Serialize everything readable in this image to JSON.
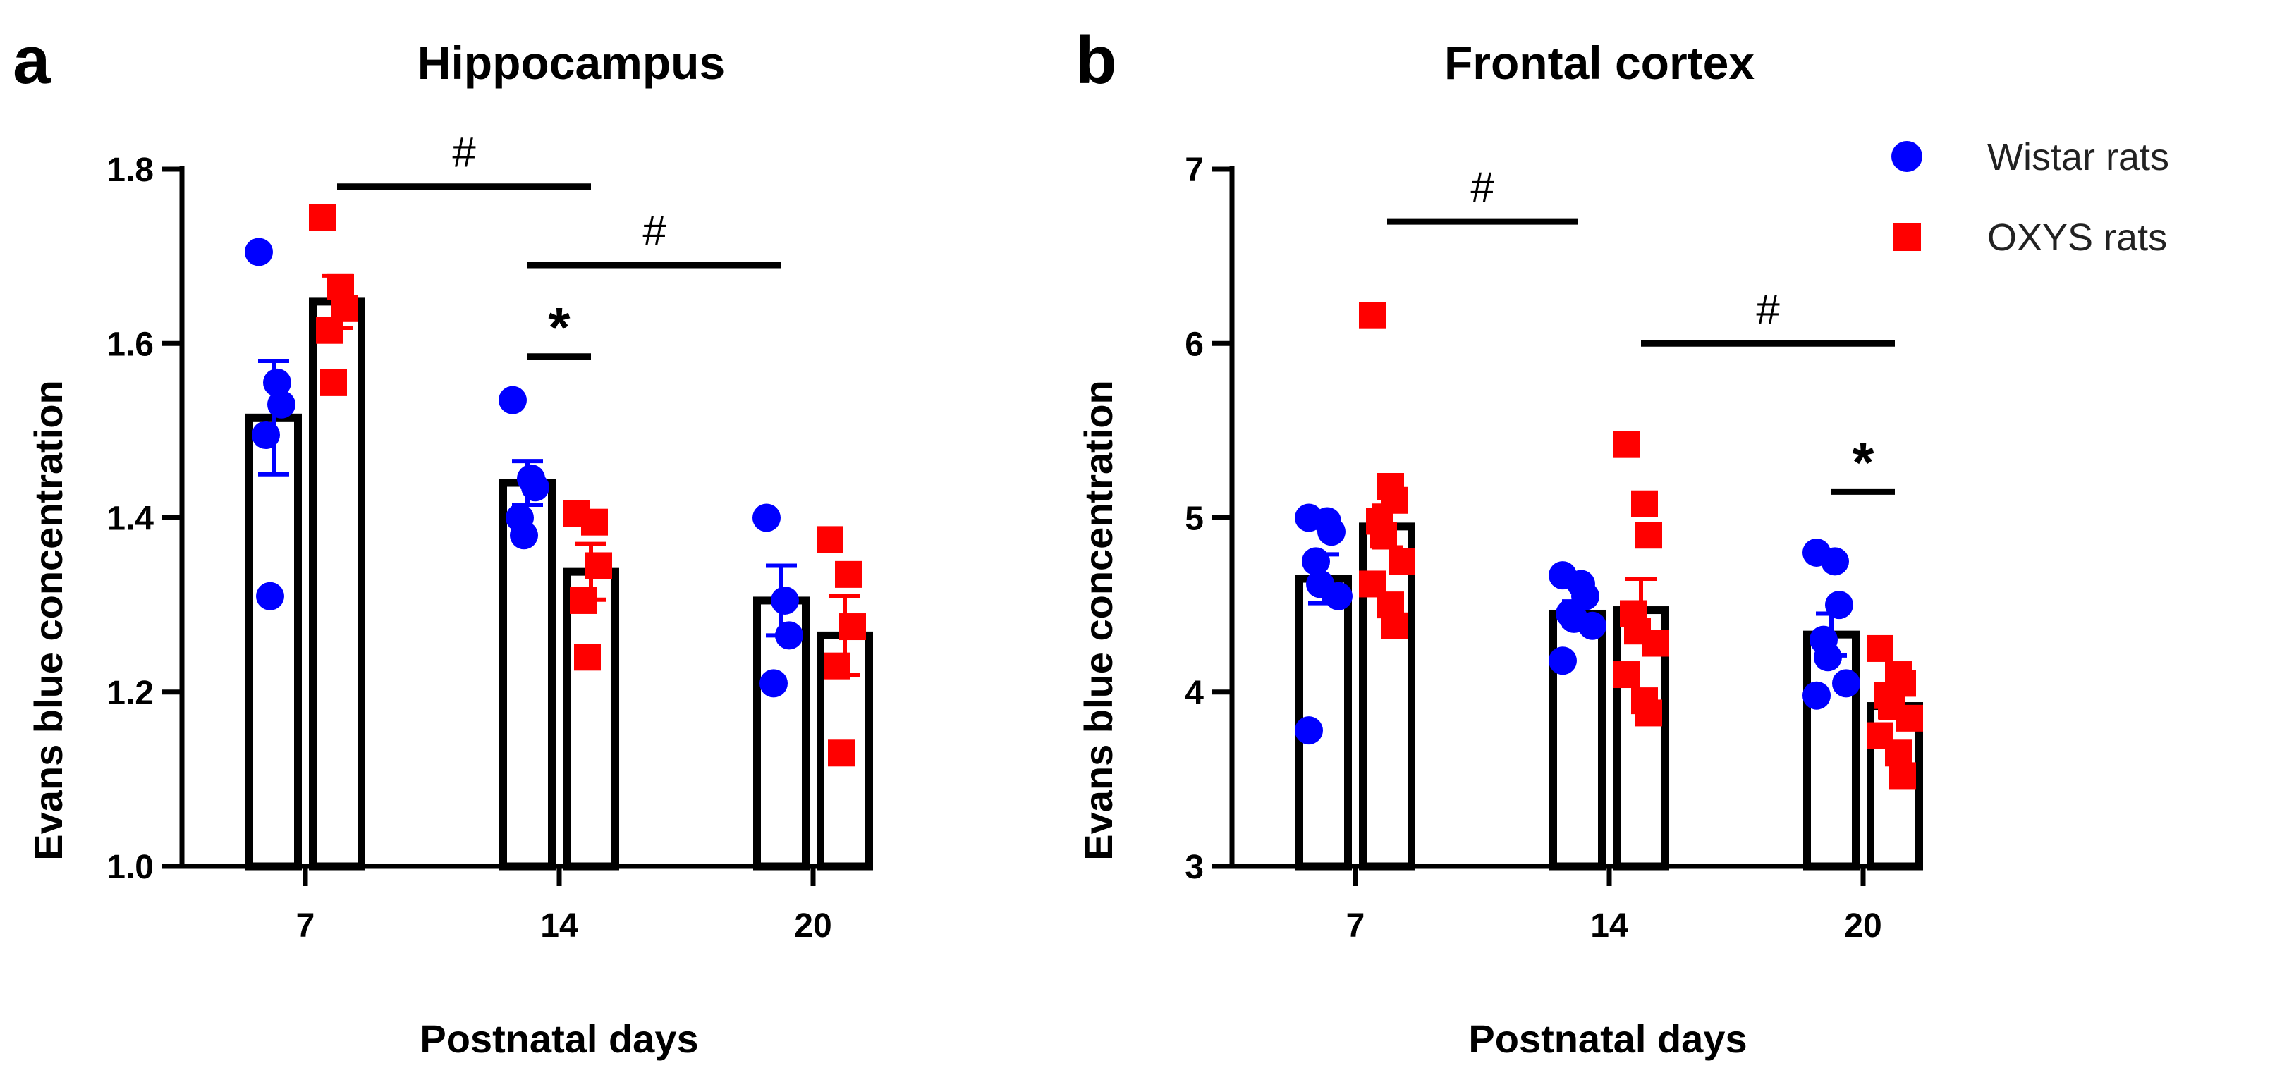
{
  "legend": [
    {
      "label": "Wistar rats",
      "color": "#0000ff",
      "marker": "circle"
    },
    {
      "label": "OXYS rats",
      "color": "#ff0000",
      "marker": "square"
    }
  ],
  "chart_data": [
    {
      "type": "bar",
      "panel": "a",
      "title": "Hippocampus",
      "xlabel": "Postnatal days",
      "ylabel": "Evans blue concentration",
      "categories": [
        "7",
        "14",
        "20"
      ],
      "ylim": [
        1.0,
        1.8
      ],
      "yticks": [
        "1.0",
        "1.2",
        "1.4",
        "1.6",
        "1.8"
      ],
      "series": [
        {
          "name": "Wistar rats",
          "color": "#0000ff",
          "marker": "circle",
          "values": [
            1.515,
            1.44,
            1.305
          ],
          "sem": [
            0.065,
            0.025,
            0.04
          ],
          "points": [
            [
              1.705,
              1.555,
              1.53,
              1.495,
              1.31
            ],
            [
              1.535,
              1.445,
              1.435,
              1.4,
              1.38
            ],
            [
              1.4,
              1.305,
              1.265,
              1.21
            ]
          ]
        },
        {
          "name": "OXYS rats",
          "color": "#ff0000",
          "marker": "square",
          "values": [
            1.648,
            1.338,
            1.265
          ],
          "sem": [
            0.03,
            0.032,
            0.045
          ],
          "points": [
            [
              1.745,
              1.665,
              1.64,
              1.615,
              1.555
            ],
            [
              1.405,
              1.395,
              1.345,
              1.305,
              1.24
            ],
            [
              1.375,
              1.335,
              1.275,
              1.23,
              1.13
            ]
          ]
        }
      ],
      "annotations": [
        {
          "label": "#",
          "kind": "hash",
          "from": [
            0,
            "OXYS rats"
          ],
          "to": [
            1,
            "OXYS rats"
          ],
          "y": 1.78
        },
        {
          "label": "#",
          "kind": "hash",
          "from": [
            1,
            "Wistar rats"
          ],
          "to": [
            2,
            "Wistar rats"
          ],
          "y": 1.69
        },
        {
          "label": "*",
          "kind": "star",
          "from": [
            1,
            "Wistar rats"
          ],
          "to": [
            1,
            "OXYS rats"
          ],
          "y": 1.585
        }
      ]
    },
    {
      "type": "bar",
      "panel": "b",
      "title": "Frontal cortex",
      "xlabel": "Postnatal days",
      "ylabel": "Evans blue concentration",
      "categories": [
        "7",
        "14",
        "20"
      ],
      "ylim": [
        3,
        7
      ],
      "yticks": [
        "3",
        "4",
        "5",
        "6",
        "7"
      ],
      "series": [
        {
          "name": "Wistar rats",
          "color": "#0000ff",
          "marker": "circle",
          "values": [
            4.65,
            4.45,
            4.33
          ],
          "sem": [
            0.14,
            0.07,
            0.12
          ],
          "points": [
            [
              5.0,
              4.98,
              4.92,
              4.75,
              4.62,
              4.55,
              3.78
            ],
            [
              4.67,
              4.62,
              4.55,
              4.45,
              4.42,
              4.38,
              4.18
            ],
            [
              4.8,
              4.75,
              4.5,
              4.3,
              4.2,
              4.05,
              3.98
            ]
          ]
        },
        {
          "name": "OXYS rats",
          "color": "#ff0000",
          "marker": "square",
          "values": [
            4.95,
            4.47,
            3.92
          ],
          "sem": [
            0.12,
            0.18,
            0.07
          ],
          "points": [
            [
              6.16,
              5.18,
              5.1,
              4.98,
              4.9,
              4.75,
              4.62,
              4.5,
              4.38
            ],
            [
              5.42,
              5.08,
              4.9,
              4.45,
              4.35,
              4.28,
              4.1,
              3.95,
              3.88
            ],
            [
              4.25,
              4.1,
              4.05,
              3.98,
              3.92,
              3.85,
              3.75,
              3.65,
              3.52
            ]
          ]
        }
      ],
      "annotations": [
        {
          "label": "#",
          "kind": "hash",
          "from": [
            0,
            "OXYS rats"
          ],
          "to": [
            1,
            "Wistar rats"
          ],
          "y": 6.7
        },
        {
          "label": "#",
          "kind": "hash",
          "from": [
            1,
            "OXYS rats"
          ],
          "to": [
            2,
            "OXYS rats"
          ],
          "y": 6.0
        },
        {
          "label": "*",
          "kind": "star",
          "from": [
            2,
            "Wistar rats"
          ],
          "to": [
            2,
            "OXYS rats"
          ],
          "y": 5.15
        }
      ]
    }
  ]
}
